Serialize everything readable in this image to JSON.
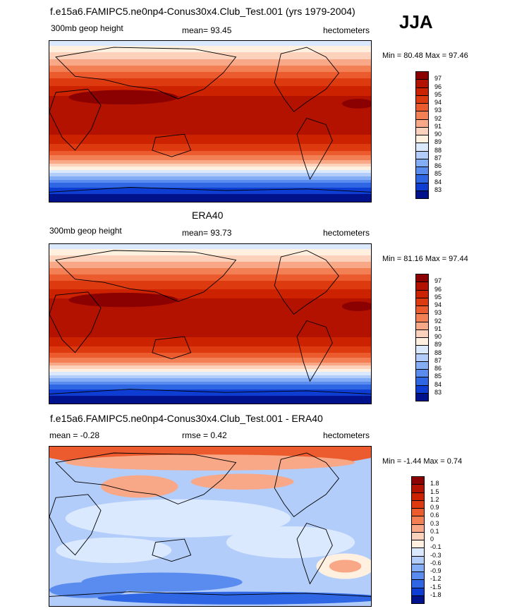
{
  "season": "JJA",
  "panels": [
    {
      "title": "f.e15a6.FAMIPC5.ne0np4-Conus30x4.Club_Test.001 (yrs 1979-2004)",
      "left_label": "300mb geop height",
      "center_label": "mean=  93.45",
      "right_label": "hectometers",
      "minmax": "Min =  80.48 Max =  97.46"
    },
    {
      "title": "ERA40",
      "left_label": "300mb geop height",
      "center_label": "mean=  93.73",
      "right_label": "hectometers",
      "minmax": "Min =  81.16 Max =  97.44"
    },
    {
      "title": "f.e15a6.FAMIPC5.ne0np4-Conus30x4.Club_Test.001 - ERA40",
      "left_label": "mean =  -0.28",
      "center_label": "rmse =   0.42",
      "right_label": "hectometers",
      "minmax": "Min =  -1.44 Max =   0.74"
    }
  ],
  "chart_data": [
    {
      "type": "heatmap",
      "title": "f.e15a6.FAMIPC5.ne0np4-Conus30x4.Club_Test.001 (yrs 1979-2004)",
      "variable": "300mb geop height",
      "units": "hectometers",
      "mean": 93.45,
      "min": 80.48,
      "max": 97.46,
      "colorbar": {
        "labels": [
          "97",
          "96",
          "95",
          "94",
          "93",
          "92",
          "91",
          "90",
          "89",
          "88",
          "87",
          "86",
          "85",
          "84",
          "83"
        ],
        "colors": [
          "#8b0000",
          "#b31200",
          "#cc2200",
          "#dd3a10",
          "#ec5b2e",
          "#f38055",
          "#f8a887",
          "#fcd2bc",
          "#fff0e0",
          "#dbe9ff",
          "#b2cdfa",
          "#83aef5",
          "#5a8cf0",
          "#2f66e3",
          "#0d3dd3",
          "#00118c"
        ]
      }
    },
    {
      "type": "heatmap",
      "title": "ERA40",
      "variable": "300mb geop height",
      "units": "hectometers",
      "mean": 93.73,
      "min": 81.16,
      "max": 97.44,
      "colorbar": {
        "labels": [
          "97",
          "96",
          "95",
          "94",
          "93",
          "92",
          "91",
          "90",
          "89",
          "88",
          "87",
          "86",
          "85",
          "84",
          "83"
        ],
        "colors": [
          "#8b0000",
          "#b31200",
          "#cc2200",
          "#dd3a10",
          "#ec5b2e",
          "#f38055",
          "#f8a887",
          "#fcd2bc",
          "#fff0e0",
          "#dbe9ff",
          "#b2cdfa",
          "#83aef5",
          "#5a8cf0",
          "#2f66e3",
          "#0d3dd3",
          "#00118c"
        ]
      }
    },
    {
      "type": "heatmap",
      "title": "f.e15a6.FAMIPC5.ne0np4-Conus30x4.Club_Test.001 - ERA40",
      "units": "hectometers",
      "mean": -0.28,
      "rmse": 0.42,
      "min": -1.44,
      "max": 0.74,
      "colorbar": {
        "labels": [
          "1.8",
          "1.5",
          "1.2",
          "0.9",
          "0.6",
          "0.3",
          "0.1",
          "0",
          "-0.1",
          "-0.3",
          "-0.6",
          "-0.9",
          "-1.2",
          "-1.5",
          "-1.8"
        ],
        "colors": [
          "#8b0000",
          "#b31200",
          "#cc2200",
          "#dd3a10",
          "#ec5b2e",
          "#f38055",
          "#f8a887",
          "#fcd2bc",
          "#fff0e0",
          "#dbe9ff",
          "#b2cdfa",
          "#83aef5",
          "#5a8cf0",
          "#2f66e3",
          "#0d3dd3",
          "#00118c"
        ]
      }
    }
  ]
}
